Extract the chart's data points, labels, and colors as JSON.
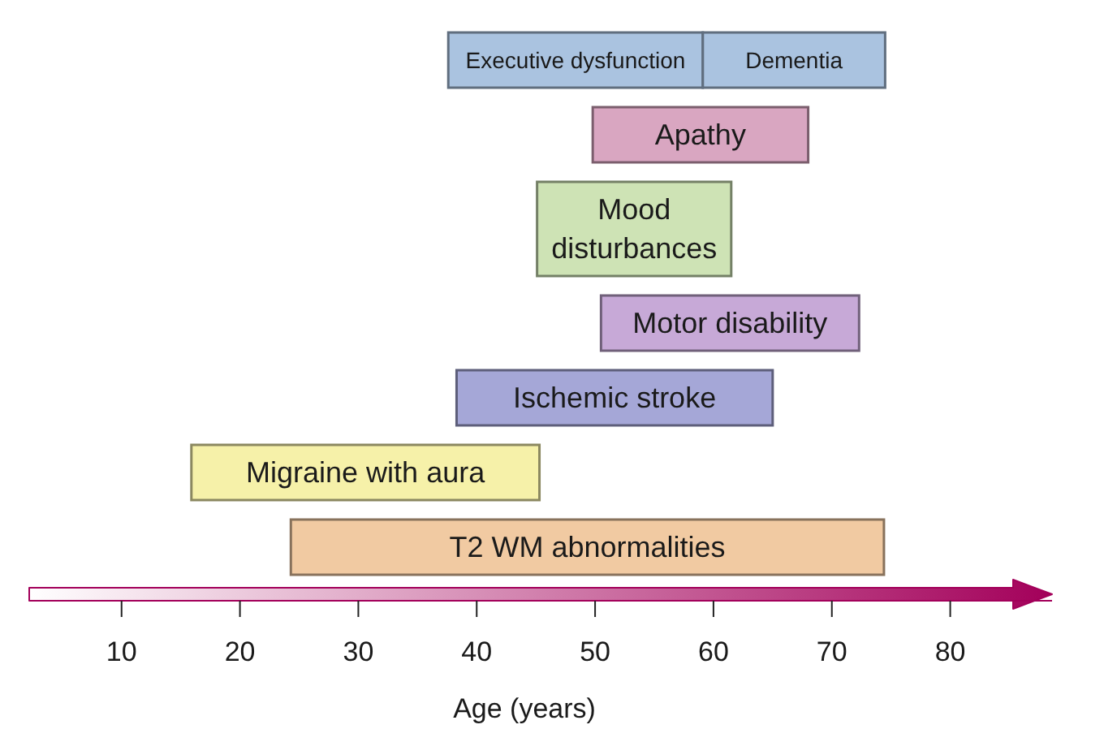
{
  "chart_data": {
    "type": "bar",
    "orientation": "horizontal",
    "xlabel": "Age (years)",
    "categories": [
      "Executive dysfunction",
      "Apathy",
      "Mood disturbances",
      "Motor disability",
      "Ischemic stroke",
      "Migraine with aura",
      "T2 WM abnormalities"
    ],
    "series": [
      {
        "base": [
          37.6,
          49.8,
          45.1,
          50.5,
          38.3,
          15.9,
          24.3
        ],
        "values": [
          21.5,
          18.2,
          16.4,
          21.8,
          26.7,
          29.4,
          50.1
        ],
        "colors": [
          "#aac3e0",
          "#d9a6c1",
          "#cee3b5",
          "#c7a9d7",
          "#a5a7d7",
          "#f6f1a9",
          "#f1caa2"
        ]
      },
      {
        "name": "Dementia",
        "color": "#aac3e0",
        "base": [
          59.1,
          null,
          null,
          null,
          null,
          null,
          null
        ],
        "values": [
          15.4,
          null,
          null,
          null,
          null,
          null,
          null
        ]
      }
    ],
    "xlim": [
      2.2,
      88.6
    ],
    "xticks": [
      10,
      20,
      30,
      40,
      50,
      60,
      70,
      80
    ]
  }
}
